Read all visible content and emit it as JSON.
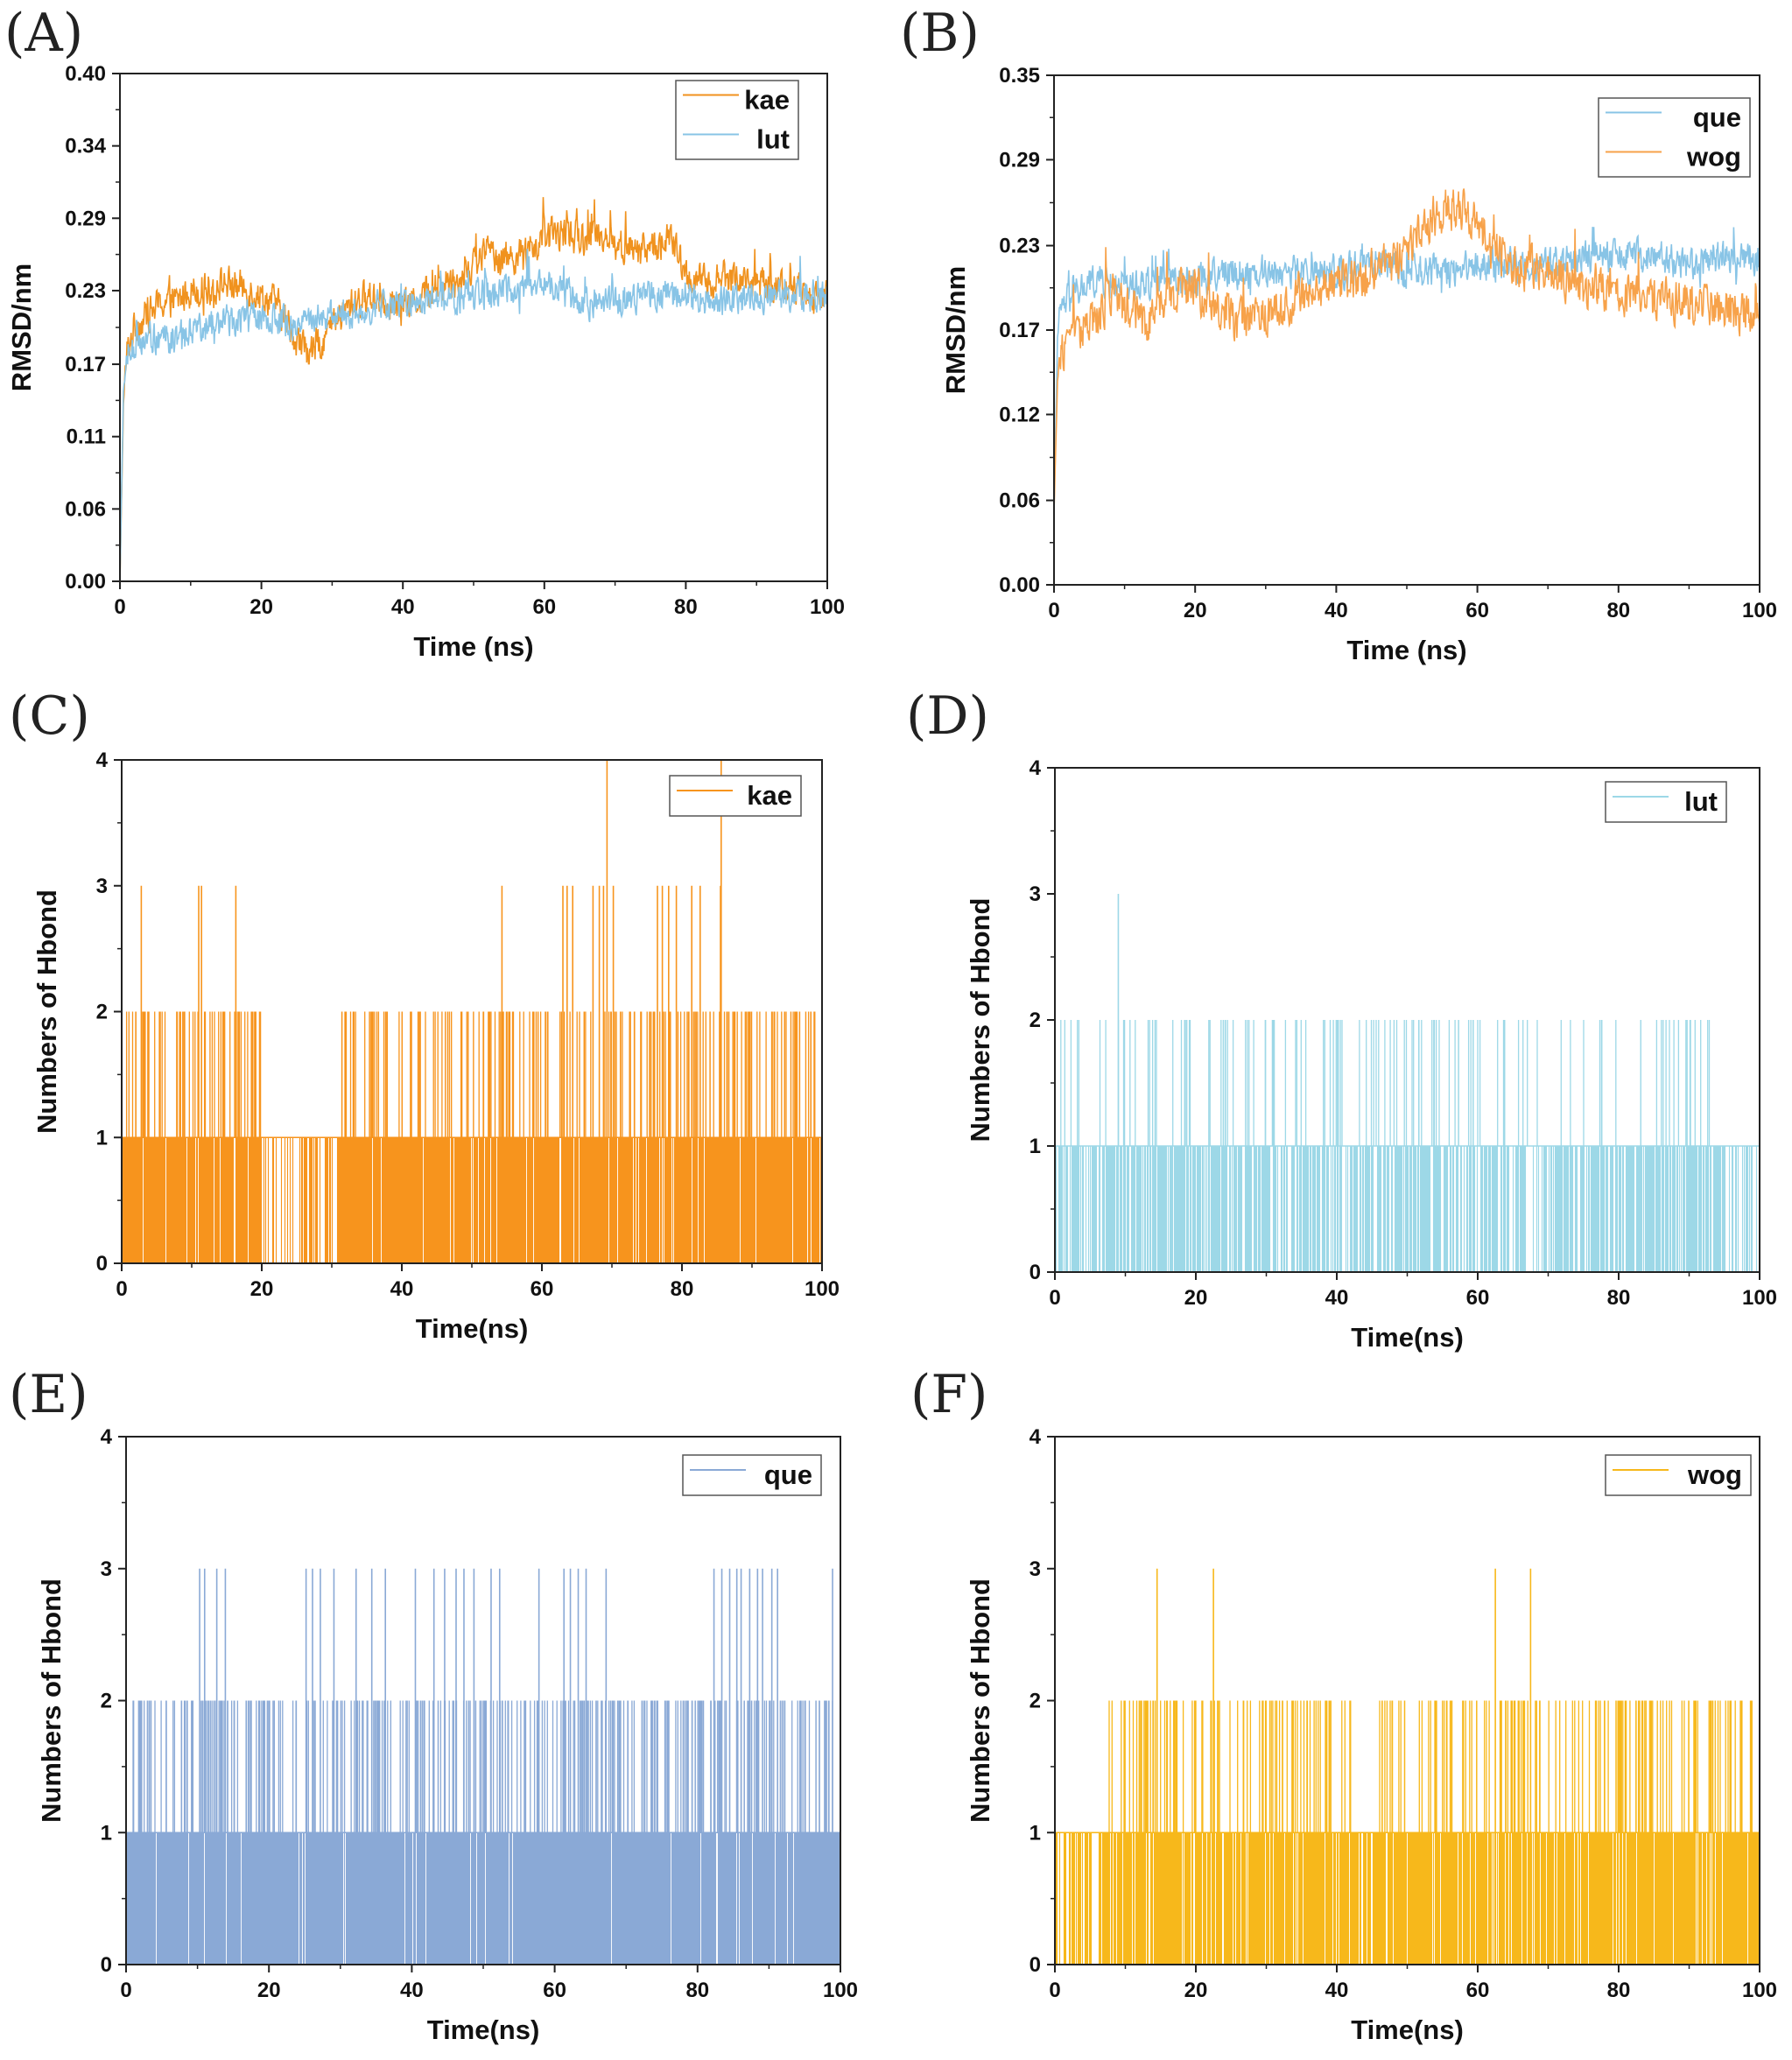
{
  "chart_data": [
    {
      "id": "A",
      "panel_label": "(A)",
      "type": "line",
      "xlabel": "Time (ns)",
      "ylabel": "RMSD/nm",
      "xlim": [
        0,
        100
      ],
      "ylim": [
        0.0,
        0.4
      ],
      "xticks": [
        0,
        20,
        40,
        60,
        80,
        100
      ],
      "xtick_labels": [
        "0",
        "20",
        "40",
        "60",
        "80",
        "100"
      ],
      "yticks": [
        0.0,
        0.057,
        0.114,
        0.171,
        0.229,
        0.286,
        0.343,
        0.4
      ],
      "ytick_labels": [
        "0.00",
        "0.06",
        "0.11",
        "0.17",
        "0.23",
        "0.29",
        "0.34",
        "0.40"
      ],
      "legend_position": "top-right",
      "series": [
        {
          "name": "kae",
          "color": "#f0921e",
          "x": [
            0,
            0.5,
            1,
            2,
            4,
            6,
            8,
            10,
            12,
            15,
            18,
            20,
            22,
            25,
            27,
            30,
            33,
            36,
            40,
            44,
            48,
            52,
            55,
            58,
            60,
            62,
            65,
            68,
            70,
            73,
            76,
            78,
            80,
            83,
            86,
            90,
            95,
            100
          ],
          "values": [
            0.0,
            0.14,
            0.18,
            0.2,
            0.21,
            0.22,
            0.22,
            0.23,
            0.23,
            0.235,
            0.23,
            0.225,
            0.22,
            0.19,
            0.18,
            0.2,
            0.22,
            0.225,
            0.215,
            0.23,
            0.24,
            0.26,
            0.255,
            0.26,
            0.27,
            0.275,
            0.27,
            0.275,
            0.265,
            0.26,
            0.265,
            0.27,
            0.24,
            0.235,
            0.24,
            0.235,
            0.23,
            0.225
          ],
          "noise": 0.012
        },
        {
          "name": "lut",
          "color": "#88c4e6",
          "x": [
            0,
            0.5,
            1,
            3,
            6,
            10,
            15,
            20,
            25,
            30,
            35,
            40,
            45,
            50,
            55,
            60,
            65,
            70,
            75,
            80,
            85,
            90,
            95,
            100
          ],
          "values": [
            0.0,
            0.15,
            0.18,
            0.19,
            0.19,
            0.195,
            0.205,
            0.21,
            0.2,
            0.21,
            0.215,
            0.22,
            0.22,
            0.225,
            0.23,
            0.235,
            0.22,
            0.22,
            0.225,
            0.225,
            0.22,
            0.225,
            0.225,
            0.225
          ],
          "noise": 0.011
        }
      ]
    },
    {
      "id": "B",
      "panel_label": "(B)",
      "type": "line",
      "xlabel": "Time (ns)",
      "ylabel": "RMSD/nm",
      "xlim": [
        0,
        100
      ],
      "ylim": [
        0.0,
        0.35
      ],
      "xticks": [
        0,
        20,
        40,
        60,
        80,
        100
      ],
      "xtick_labels": [
        "0",
        "20",
        "40",
        "60",
        "80",
        "100"
      ],
      "yticks": [
        0.0,
        0.058,
        0.117,
        0.175,
        0.233,
        0.292,
        0.35
      ],
      "ytick_labels": [
        "0.00",
        "0.06",
        "0.12",
        "0.17",
        "0.23",
        "0.29",
        "0.35"
      ],
      "legend_position": "top-right",
      "series": [
        {
          "name": "que",
          "color": "#88c4e6",
          "x": [
            0,
            0.5,
            1,
            3,
            6,
            10,
            15,
            20,
            25,
            30,
            35,
            40,
            45,
            50,
            55,
            60,
            65,
            70,
            75,
            80,
            85,
            90,
            95,
            100
          ],
          "values": [
            0.05,
            0.17,
            0.19,
            0.2,
            0.21,
            0.205,
            0.21,
            0.21,
            0.215,
            0.215,
            0.215,
            0.215,
            0.22,
            0.215,
            0.215,
            0.22,
            0.22,
            0.22,
            0.225,
            0.225,
            0.225,
            0.22,
            0.225,
            0.225
          ],
          "noise": 0.01
        },
        {
          "name": "wog",
          "color": "#f7a24a",
          "x": [
            0,
            0.5,
            1,
            3,
            6,
            8,
            10,
            13,
            16,
            20,
            23,
            26,
            30,
            35,
            40,
            45,
            50,
            53,
            56,
            58,
            60,
            62,
            65,
            70,
            75,
            80,
            85,
            90,
            95,
            100
          ],
          "values": [
            0.05,
            0.14,
            0.16,
            0.175,
            0.18,
            0.2,
            0.19,
            0.18,
            0.2,
            0.205,
            0.19,
            0.18,
            0.185,
            0.2,
            0.205,
            0.215,
            0.225,
            0.25,
            0.26,
            0.255,
            0.25,
            0.23,
            0.22,
            0.215,
            0.205,
            0.2,
            0.195,
            0.195,
            0.19,
            0.185
          ],
          "noise": 0.013
        }
      ]
    },
    {
      "id": "C",
      "panel_label": "(C)",
      "type": "bar",
      "xlabel": "Time(ns)",
      "ylabel": "Numbers of Hbond",
      "xlim": [
        0,
        100
      ],
      "ylim": [
        0,
        4
      ],
      "xticks": [
        0,
        20,
        40,
        60,
        80,
        100
      ],
      "xtick_labels": [
        "0",
        "20",
        "40",
        "60",
        "80",
        "100"
      ],
      "yticks": [
        0,
        1,
        2,
        3,
        4
      ],
      "ytick_labels": [
        "0",
        "1",
        "2",
        "3",
        "4"
      ],
      "legend_position": "top-right",
      "series": [
        {
          "name": "kae",
          "color": "#f7941d",
          "fill": 0.94,
          "gap_ranges": [
            [
              20,
              31
            ]
          ],
          "gap_fill": 0.45,
          "spikes2": [
            [
              0.5,
              20
            ],
            [
              31,
              61
            ],
            [
              62,
              99
            ]
          ],
          "spike2_count": 260,
          "spikes3": [
            2.8,
            11,
            11.4,
            16.3,
            54.3,
            63,
            63.6,
            64.4,
            67.3,
            68.2,
            68.8,
            70.2,
            76.5,
            77.2,
            78.1,
            79.2,
            81.4,
            82.6,
            85.5
          ],
          "spikes4": [
            69.3,
            85.6
          ]
        }
      ]
    },
    {
      "id": "D",
      "panel_label": "(D)",
      "type": "bar",
      "xlabel": "Time(ns)",
      "ylabel": "Numbers of Hbond",
      "xlim": [
        0,
        100
      ],
      "ylim": [
        0,
        4
      ],
      "xticks": [
        0,
        20,
        40,
        60,
        80,
        100
      ],
      "xtick_labels": [
        "0",
        "20",
        "40",
        "60",
        "80",
        "100"
      ],
      "yticks": [
        0,
        1,
        2,
        3,
        4
      ],
      "ytick_labels": [
        "0",
        "1",
        "2",
        "3",
        "4"
      ],
      "legend_position": "top-right",
      "series": [
        {
          "name": "lut",
          "color": "#9dd8e7",
          "fill": 0.72,
          "gap_ranges": [
            [
              67,
              69
            ],
            [
              94.5,
              100
            ]
          ],
          "gap_fill": 0.3,
          "spikes2": [
            [
              0.5,
              93
            ]
          ],
          "spike2_count": 120,
          "spikes3": [
            9
          ],
          "spikes4": []
        }
      ]
    },
    {
      "id": "E",
      "panel_label": "(E)",
      "type": "bar",
      "xlabel": "Time(ns)",
      "ylabel": "Numbers of Hbond",
      "xlim": [
        0,
        100
      ],
      "ylim": [
        0,
        4
      ],
      "xticks": [
        0,
        20,
        40,
        60,
        80,
        100
      ],
      "xtick_labels": [
        "0",
        "20",
        "40",
        "60",
        "80",
        "100"
      ],
      "yticks": [
        0,
        1,
        2,
        3,
        4
      ],
      "ytick_labels": [
        "0",
        "1",
        "2",
        "3",
        "4"
      ],
      "legend_position": "top-right",
      "series": [
        {
          "name": "que",
          "color": "#8aa9d6",
          "fill": 0.97,
          "gap_ranges": [],
          "gap_fill": 0.9,
          "spikes2": [
            [
              0.5,
              99
            ]
          ],
          "spike2_count": 330,
          "spikes3": [
            10.3,
            11,
            12.7,
            13.9,
            25.2,
            26.1,
            27.2,
            29.1,
            32.2,
            34.4,
            36.3,
            40.5,
            43.1,
            44.6,
            46.2,
            47.3,
            48.7,
            51.1,
            52.3,
            57.8,
            61.3,
            62.2,
            63.3,
            64.4,
            67.2,
            82.3,
            83.4,
            84.5,
            85.5,
            86.1,
            87.3,
            88.4,
            89.1,
            90.4,
            91.2,
            98.9
          ],
          "spikes4": []
        }
      ]
    },
    {
      "id": "F",
      "panel_label": "(F)",
      "type": "bar",
      "xlabel": "Time(ns)",
      "ylabel": "Numbers of Hbond",
      "xlim": [
        0,
        100
      ],
      "ylim": [
        0,
        4
      ],
      "xticks": [
        0,
        20,
        40,
        60,
        80,
        100
      ],
      "xtick_labels": [
        "0",
        "20",
        "40",
        "60",
        "80",
        "100"
      ],
      "yticks": [
        0,
        1,
        2,
        3,
        4
      ],
      "ytick_labels": [
        "0",
        "1",
        "2",
        "3",
        "4"
      ],
      "legend_position": "top-right",
      "series": [
        {
          "name": "wog",
          "color": "#f7b81b",
          "fill": 0.9,
          "gap_ranges": [
            [
              0,
              7
            ]
          ],
          "gap_fill": 0.55,
          "spikes2": [
            [
              7.5,
              42
            ],
            [
              46,
              99
            ]
          ],
          "spike2_count": 230,
          "spikes3": [
            14.5,
            22.5,
            62.5,
            67.5
          ],
          "spikes4": []
        }
      ]
    }
  ]
}
